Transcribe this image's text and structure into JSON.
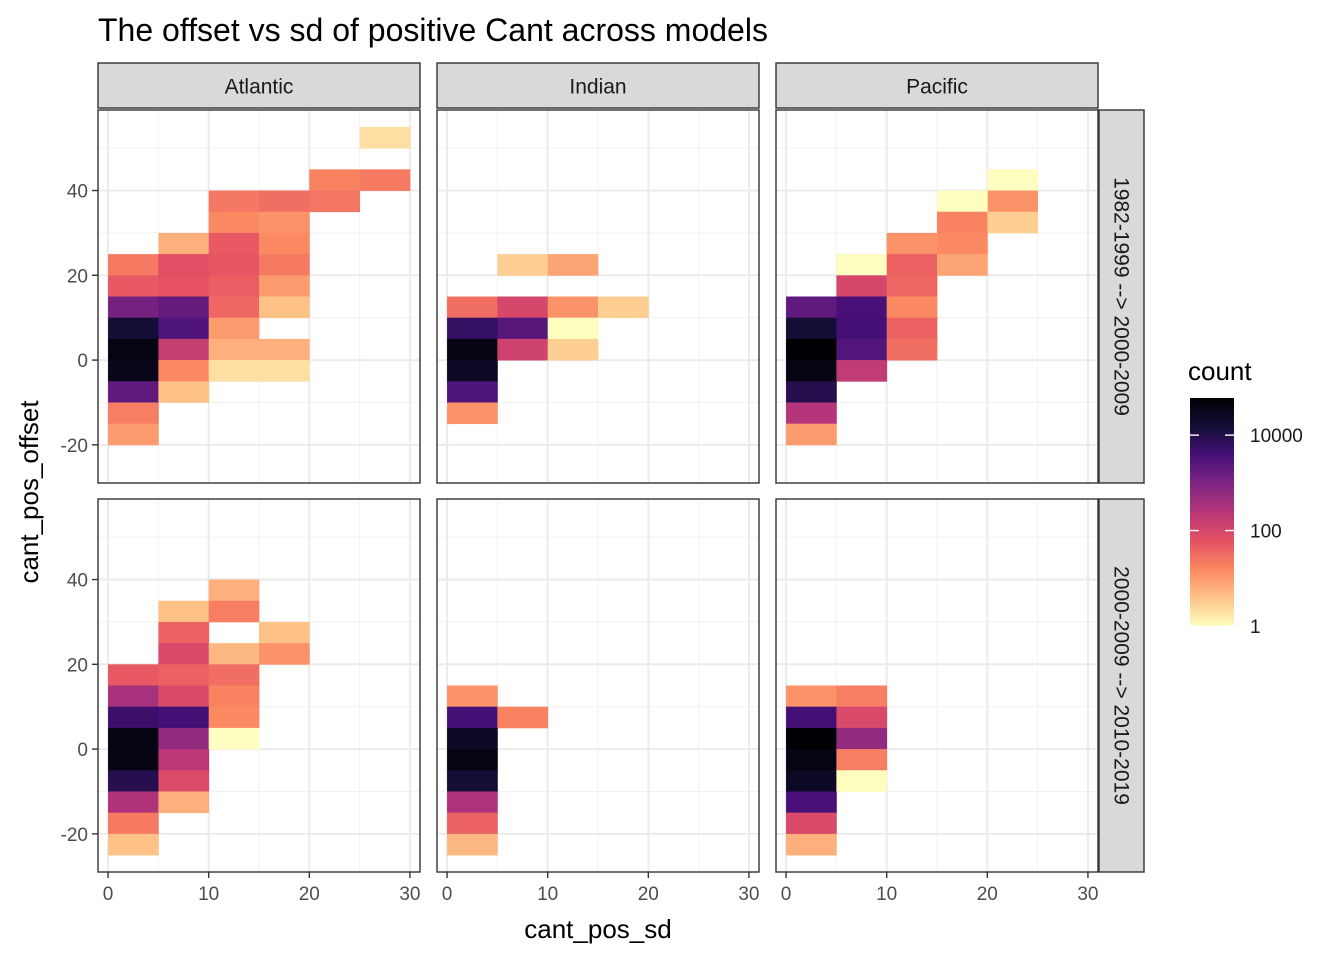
{
  "chart_data": {
    "type": "heatmap",
    "title": "The offset vs sd of positive Cant across models",
    "xlabel": "cant_pos_sd",
    "ylabel": "cant_pos_offset",
    "xlim": [
      -1,
      31
    ],
    "ylim": [
      -29,
      59
    ],
    "x_ticks": [
      0,
      10,
      20,
      30
    ],
    "y_ticks": [
      -20,
      0,
      20,
      40
    ],
    "bin_width_x": 5,
    "bin_width_y": 5,
    "columns": [
      "Atlantic",
      "Indian",
      "Pacific"
    ],
    "rows": [
      "1982-1999 --> 2000-2009",
      "2000-2009 --> 2010-2019"
    ],
    "legend": {
      "title": "count",
      "scale": "log10",
      "breaks": [
        1,
        100,
        10000
      ],
      "range": [
        1,
        60000
      ],
      "colors": [
        "#fcfdbf",
        "#fec287",
        "#fb8861",
        "#e55064",
        "#b63679",
        "#7e2482",
        "#451077",
        "#140e36",
        "#000004"
      ]
    },
    "panels": [
      {
        "row": 0,
        "col": 0,
        "cells": [
          [
            25,
            50,
            2
          ],
          [
            20,
            40,
            18
          ],
          [
            25,
            40,
            22
          ],
          [
            10,
            35,
            24
          ],
          [
            15,
            35,
            30
          ],
          [
            20,
            35,
            25
          ],
          [
            10,
            30,
            15
          ],
          [
            15,
            30,
            12
          ],
          [
            5,
            25,
            6
          ],
          [
            10,
            25,
            50
          ],
          [
            15,
            25,
            15
          ],
          [
            0,
            20,
            22
          ],
          [
            5,
            20,
            70
          ],
          [
            10,
            20,
            55
          ],
          [
            15,
            20,
            22
          ],
          [
            0,
            15,
            50
          ],
          [
            5,
            15,
            60
          ],
          [
            10,
            15,
            45
          ],
          [
            15,
            15,
            10
          ],
          [
            0,
            10,
            1200
          ],
          [
            5,
            10,
            1800
          ],
          [
            10,
            10,
            35
          ],
          [
            15,
            10,
            4
          ],
          [
            0,
            5,
            15000
          ],
          [
            5,
            5,
            3000
          ],
          [
            10,
            5,
            10
          ],
          [
            0,
            0,
            40000
          ],
          [
            5,
            0,
            160
          ],
          [
            10,
            0,
            6
          ],
          [
            15,
            0,
            6
          ],
          [
            0,
            -5,
            30000
          ],
          [
            5,
            -5,
            15
          ],
          [
            10,
            -5,
            2
          ],
          [
            15,
            -5,
            2
          ],
          [
            0,
            -10,
            2000
          ],
          [
            5,
            -10,
            4
          ],
          [
            0,
            -15,
            20
          ],
          [
            0,
            -20,
            10
          ]
        ]
      },
      {
        "row": 0,
        "col": 1,
        "cells": [
          [
            5,
            20,
            3
          ],
          [
            10,
            20,
            8
          ],
          [
            0,
            10,
            30
          ],
          [
            5,
            10,
            100
          ],
          [
            10,
            10,
            12
          ],
          [
            15,
            10,
            3
          ],
          [
            0,
            5,
            6000
          ],
          [
            5,
            5,
            2500
          ],
          [
            10,
            5,
            1
          ],
          [
            0,
            0,
            40000
          ],
          [
            5,
            0,
            120
          ],
          [
            10,
            0,
            3
          ],
          [
            0,
            -5,
            25000
          ],
          [
            0,
            -10,
            3000
          ],
          [
            0,
            -15,
            12
          ]
        ]
      },
      {
        "row": 0,
        "col": 2,
        "cells": [
          [
            20,
            40,
            1
          ],
          [
            20,
            35,
            12
          ],
          [
            15,
            35,
            1
          ],
          [
            15,
            30,
            18
          ],
          [
            20,
            30,
            3
          ],
          [
            10,
            25,
            12
          ],
          [
            15,
            25,
            15
          ],
          [
            5,
            20,
            1
          ],
          [
            10,
            20,
            40
          ],
          [
            15,
            20,
            8
          ],
          [
            5,
            15,
            100
          ],
          [
            10,
            15,
            35
          ],
          [
            0,
            10,
            2000
          ],
          [
            5,
            10,
            3500
          ],
          [
            10,
            10,
            15
          ],
          [
            0,
            5,
            15000
          ],
          [
            5,
            5,
            4000
          ],
          [
            10,
            5,
            40
          ],
          [
            0,
            0,
            60000
          ],
          [
            5,
            0,
            2800
          ],
          [
            10,
            0,
            30
          ],
          [
            0,
            -5,
            40000
          ],
          [
            5,
            -5,
            180
          ],
          [
            0,
            -10,
            9000
          ],
          [
            0,
            -15,
            260
          ],
          [
            0,
            -20,
            10
          ]
        ]
      },
      {
        "row": 1,
        "col": 0,
        "cells": [
          [
            10,
            35,
            6
          ],
          [
            5,
            30,
            4
          ],
          [
            10,
            30,
            20
          ],
          [
            5,
            25,
            40
          ],
          [
            15,
            25,
            4
          ],
          [
            5,
            20,
            90
          ],
          [
            10,
            20,
            5
          ],
          [
            15,
            20,
            12
          ],
          [
            0,
            15,
            50
          ],
          [
            5,
            15,
            40
          ],
          [
            10,
            15,
            30
          ],
          [
            0,
            10,
            350
          ],
          [
            5,
            10,
            90
          ],
          [
            10,
            10,
            18
          ],
          [
            0,
            5,
            5000
          ],
          [
            5,
            5,
            4000
          ],
          [
            10,
            5,
            15
          ],
          [
            0,
            0,
            40000
          ],
          [
            5,
            0,
            600
          ],
          [
            10,
            0,
            1
          ],
          [
            0,
            -5,
            40000
          ],
          [
            5,
            -5,
            220
          ],
          [
            0,
            -10,
            9000
          ],
          [
            5,
            -10,
            80
          ],
          [
            0,
            -15,
            280
          ],
          [
            5,
            -15,
            6
          ],
          [
            0,
            -20,
            22
          ],
          [
            0,
            -25,
            4
          ]
        ]
      },
      {
        "row": 1,
        "col": 1,
        "cells": [
          [
            0,
            10,
            12
          ],
          [
            0,
            5,
            4000
          ],
          [
            5,
            5,
            18
          ],
          [
            0,
            0,
            25000
          ],
          [
            0,
            -5,
            40000
          ],
          [
            0,
            -10,
            15000
          ],
          [
            0,
            -15,
            300
          ],
          [
            0,
            -20,
            40
          ],
          [
            0,
            -25,
            5
          ]
        ]
      },
      {
        "row": 1,
        "col": 2,
        "cells": [
          [
            0,
            10,
            12
          ],
          [
            5,
            10,
            20
          ],
          [
            0,
            5,
            4000
          ],
          [
            5,
            5,
            90
          ],
          [
            0,
            0,
            60000
          ],
          [
            5,
            0,
            600
          ],
          [
            0,
            -5,
            40000
          ],
          [
            5,
            -5,
            20
          ],
          [
            0,
            -10,
            25000
          ],
          [
            5,
            -10,
            1
          ],
          [
            0,
            -15,
            3500
          ],
          [
            0,
            -20,
            90
          ],
          [
            0,
            -25,
            6
          ]
        ]
      }
    ]
  }
}
